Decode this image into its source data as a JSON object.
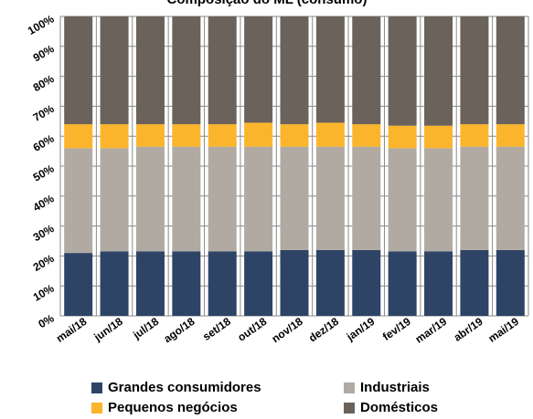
{
  "chart_data": {
    "type": "bar",
    "stacked": true,
    "percent_stacked": true,
    "title": "Composição do ML (consumo)",
    "categories": [
      "mai/18",
      "jun/18",
      "jul/18",
      "ago/18",
      "set/18",
      "out/18",
      "nov/18",
      "dez/18",
      "jan/19",
      "fev/19",
      "mar/19",
      "abr/19",
      "mai/19"
    ],
    "y_ticks": [
      "0%",
      "10%",
      "20%",
      "30%",
      "40%",
      "50%",
      "60%",
      "70%",
      "80%",
      "90%",
      "100%"
    ],
    "ylim": [
      0,
      100
    ],
    "grid": true,
    "legend_position": "bottom",
    "series": [
      {
        "name": "Grandes consumidores",
        "color": "#2e4466",
        "values": [
          21,
          21.5,
          21.5,
          21.5,
          21.5,
          21.5,
          22,
          22,
          22,
          21.5,
          21.5,
          22,
          22
        ]
      },
      {
        "name": "Industriais",
        "color": "#b1aaa3",
        "values": [
          35,
          34.5,
          35,
          35,
          35,
          35,
          34.5,
          34.5,
          34.5,
          34.5,
          34.5,
          34.5,
          34.5
        ]
      },
      {
        "name": "Pequenos negócios",
        "color": "#fbb52d",
        "values": [
          8,
          8,
          7.5,
          7.5,
          7.5,
          8,
          7.5,
          8,
          7.5,
          7.5,
          7.5,
          7.5,
          7.5
        ]
      },
      {
        "name": "Domésticos",
        "color": "#6b625b",
        "values": [
          36,
          36,
          36,
          36,
          36,
          35.5,
          36,
          35.5,
          36,
          36.5,
          36.5,
          36,
          36
        ]
      }
    ]
  }
}
